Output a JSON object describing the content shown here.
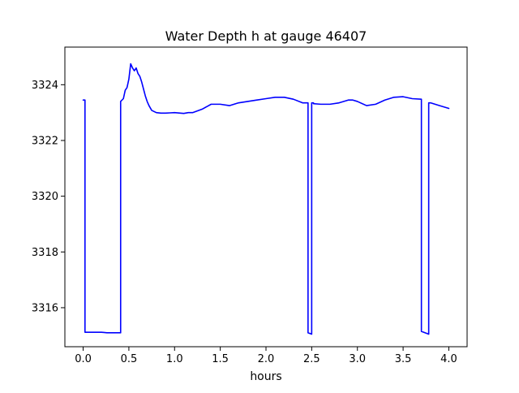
{
  "chart_data": {
    "type": "line",
    "title": "Water Depth h at gauge 46407",
    "xlabel": "hours",
    "ylabel": "",
    "xlim": [
      -0.2,
      4.2
    ],
    "ylim": [
      3314.6,
      3325.35
    ],
    "xticks": [
      0.0,
      0.5,
      1.0,
      1.5,
      2.0,
      2.5,
      3.0,
      3.5,
      4.0
    ],
    "xtick_labels": [
      "0.0",
      "0.5",
      "1.0",
      "1.5",
      "2.0",
      "2.5",
      "3.0",
      "3.5",
      "4.0"
    ],
    "yticks": [
      3316,
      3318,
      3320,
      3322,
      3324
    ],
    "ytick_labels": [
      "3316",
      "3318",
      "3320",
      "3322",
      "3324"
    ],
    "grid": false,
    "legend": "none",
    "series": [
      {
        "color": "#0000ff",
        "x": [
          0.0,
          0.02,
          0.02,
          0.1,
          0.2,
          0.26,
          0.3,
          0.34,
          0.4,
          0.41,
          0.41,
          0.44,
          0.46,
          0.48,
          0.5,
          0.52,
          0.54,
          0.56,
          0.58,
          0.6,
          0.62,
          0.64,
          0.66,
          0.68,
          0.7,
          0.72,
          0.75,
          0.8,
          0.85,
          0.9,
          0.95,
          1.0,
          1.1,
          1.15,
          1.2,
          1.3,
          1.4,
          1.5,
          1.6,
          1.7,
          1.8,
          1.9,
          2.0,
          2.1,
          2.2,
          2.3,
          2.4,
          2.46,
          2.46,
          2.5,
          2.5,
          2.52,
          2.52,
          2.6,
          2.7,
          2.8,
          2.9,
          2.95,
          3.0,
          3.1,
          3.2,
          3.3,
          3.4,
          3.5,
          3.6,
          3.7,
          3.7,
          3.78,
          3.78,
          3.8,
          3.9,
          4.0
        ],
        "y": [
          3323.45,
          3323.45,
          3315.12,
          3315.12,
          3315.12,
          3315.1,
          3315.1,
          3315.1,
          3315.1,
          3315.1,
          3323.4,
          3323.5,
          3323.8,
          3323.9,
          3324.2,
          3324.75,
          3324.6,
          3324.5,
          3324.6,
          3324.4,
          3324.3,
          3324.1,
          3323.85,
          3323.6,
          3323.4,
          3323.25,
          3323.08,
          3323.0,
          3322.98,
          3322.98,
          3322.99,
          3323.0,
          3322.97,
          3323.0,
          3323.0,
          3323.12,
          3323.3,
          3323.3,
          3323.25,
          3323.35,
          3323.4,
          3323.45,
          3323.5,
          3323.55,
          3323.55,
          3323.48,
          3323.35,
          3323.35,
          3315.1,
          3315.05,
          3323.35,
          3323.35,
          3323.32,
          3323.3,
          3323.3,
          3323.35,
          3323.45,
          3323.45,
          3323.4,
          3323.25,
          3323.3,
          3323.45,
          3323.55,
          3323.57,
          3323.5,
          3323.48,
          3315.15,
          3315.05,
          3323.35,
          3323.35,
          3323.25,
          3323.15
        ]
      }
    ]
  }
}
